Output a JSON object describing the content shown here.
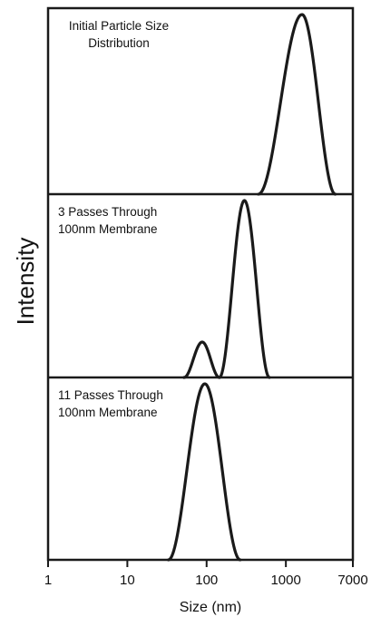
{
  "chart_data": {
    "type": "line",
    "xlabel": "Size (nm)",
    "ylabel": "Intensity",
    "x_scale": "log",
    "xlim": [
      1,
      7000
    ],
    "x_ticks": [
      "1",
      "10",
      "100",
      "1000",
      "7000"
    ],
    "x_tick_values": [
      1,
      10,
      100,
      1000,
      7000
    ],
    "grid": false,
    "panels": [
      {
        "label_lines": [
          "Initial Particle Size",
          "Distribution"
        ],
        "label_align": "center",
        "peaks": [
          {
            "center": 1600,
            "height": 1.0,
            "xmin": 450,
            "xmax": 4200
          }
        ]
      },
      {
        "label_lines": [
          "3 Passes Through",
          "100nm Membrane"
        ],
        "label_align": "left",
        "peaks": [
          {
            "center": 88,
            "height": 0.2,
            "xmin": 52,
            "xmax": 145
          },
          {
            "center": 300,
            "height": 1.0,
            "xmin": 145,
            "xmax": 620
          }
        ]
      },
      {
        "label_lines": [
          "11 Passes Through",
          "100nm Membrane"
        ],
        "label_align": "left",
        "peaks": [
          {
            "center": 95,
            "height": 1.0,
            "xmin": 33,
            "xmax": 265
          }
        ]
      }
    ]
  }
}
